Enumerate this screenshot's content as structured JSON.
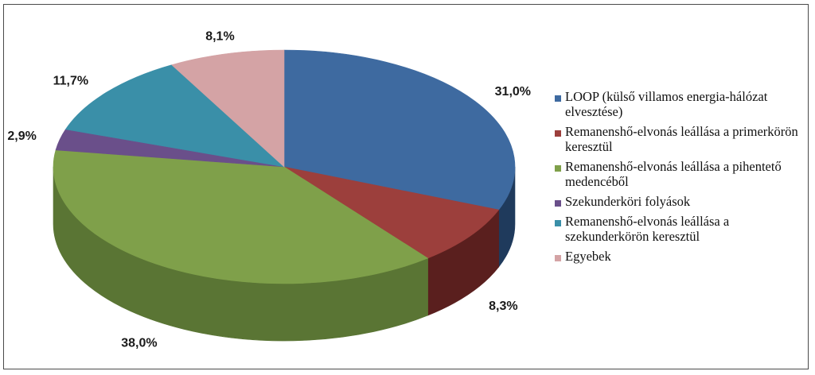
{
  "chart_data": {
    "type": "pie",
    "variant": "3d",
    "title": "",
    "slices": [
      {
        "label": "LOOP (külső villamos energia-hálózat elvesztése)",
        "value": 31.0,
        "value_label": "31,0%",
        "color": "#3e6aa0",
        "side_color": "#1f3a5c"
      },
      {
        "label": "Remanenshő-elvonás leállása a primerkörön keresztül",
        "value": 8.3,
        "value_label": "8,3%",
        "color": "#9c3f3c",
        "side_color": "#5a1f1e"
      },
      {
        "label": "Remanenshő-elvonás leállása a pihentető medencéből",
        "value": 38.0,
        "value_label": "38,0%",
        "color": "#7fa04a",
        "side_color": "#5a7534"
      },
      {
        "label": "Szekunderköri folyások",
        "value": 2.9,
        "value_label": "2,9%",
        "color": "#6a4f8a",
        "side_color": "#3f2e55"
      },
      {
        "label": "Remanenshő-elvonás leállása a szekunderkörön keresztül",
        "value": 11.7,
        "value_label": "11,7%",
        "color": "#3a8fa8",
        "side_color": "#215a6b"
      },
      {
        "label": "Egyebek",
        "value": 8.1,
        "value_label": "8,1%",
        "color": "#d4a3a5",
        "side_color": "#9c7173"
      }
    ],
    "legend": {
      "position": "right",
      "items": [
        "LOOP (külső villamos energia-hálózat elvesztése)",
        "Remanenshő-elvonás leállása a primerkörön keresztül",
        "Remanenshő-elvonás leállása a pihentető medencéből",
        "Szekunderköri folyások",
        "Remanenshő-elvonás leállása a szekunderkörön keresztül",
        "Egyebek"
      ]
    }
  }
}
